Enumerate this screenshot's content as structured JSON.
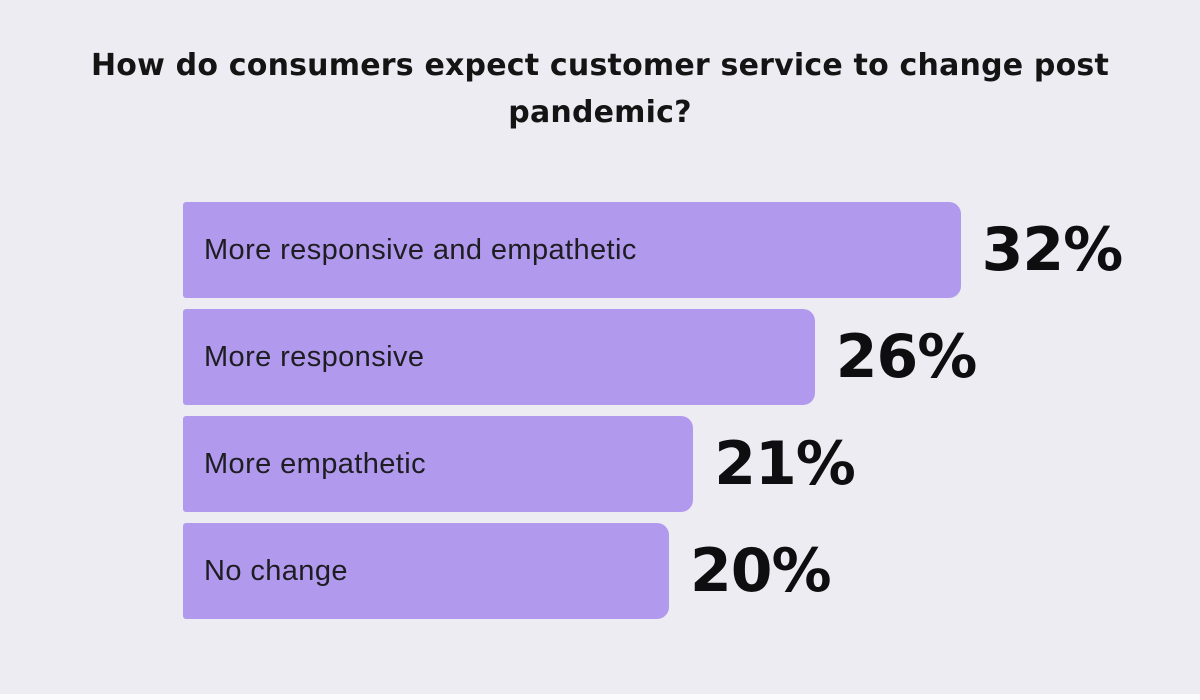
{
  "title": {
    "line1": "How do consumers expect customer service to change post",
    "line2": "pandemic?",
    "full": "How do consumers expect customer service to change post pandemic?"
  },
  "chart_data": {
    "type": "bar",
    "orientation": "horizontal",
    "title": "How do consumers expect customer service to change post pandemic?",
    "categories": [
      "More responsive and empathetic",
      "More responsive",
      "More empathetic",
      "No change"
    ],
    "values": [
      32,
      26,
      21,
      20
    ],
    "unit": "%",
    "value_labels": [
      "32%",
      "26%",
      "21%",
      "20%"
    ],
    "xlim": [
      0,
      32
    ],
    "grid": false,
    "legend": "none",
    "axis_ticks": "none",
    "bar_color": "#B19AED",
    "label_color": "#1D1D22",
    "value_color": "#0E0E10",
    "background_color": "#EDECF2"
  }
}
